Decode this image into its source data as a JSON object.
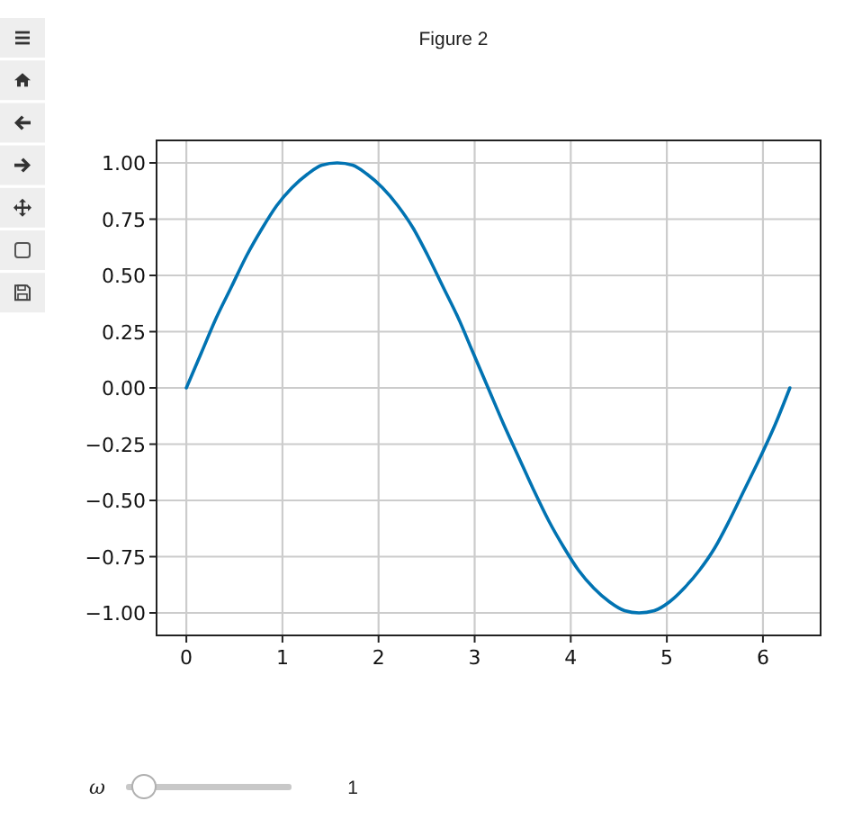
{
  "chart_data": {
    "type": "line",
    "title": "Figure 2",
    "x": [
      0,
      0.16,
      0.31,
      0.47,
      0.63,
      0.79,
      0.94,
      1.1,
      1.26,
      1.41,
      1.57,
      1.73,
      1.88,
      2.04,
      2.2,
      2.36,
      2.51,
      2.67,
      2.83,
      2.98,
      3.14,
      3.3,
      3.46,
      3.61,
      3.77,
      3.93,
      4.08,
      4.24,
      4.4,
      4.56,
      4.71,
      4.87,
      5.03,
      5.18,
      5.34,
      5.5,
      5.65,
      5.81,
      5.97,
      6.13,
      6.28
    ],
    "series": [
      {
        "color": "#0173b2",
        "values": [
          0,
          0.16,
          0.31,
          0.45,
          0.59,
          0.71,
          0.81,
          0.89,
          0.95,
          0.99,
          1.0,
          0.99,
          0.95,
          0.89,
          0.81,
          0.71,
          0.59,
          0.45,
          0.31,
          0.16,
          0,
          -0.16,
          -0.31,
          -0.45,
          -0.59,
          -0.71,
          -0.81,
          -0.89,
          -0.95,
          -0.99,
          -1.0,
          -0.99,
          -0.95,
          -0.89,
          -0.81,
          -0.71,
          -0.59,
          -0.45,
          -0.31,
          -0.16,
          0
        ]
      }
    ],
    "xlim": [
      -0.31,
      6.6
    ],
    "ylim": [
      -1.1,
      1.1
    ],
    "xticks": [
      0,
      1,
      2,
      3,
      4,
      5,
      6
    ],
    "yticks": [
      {
        "value": -1,
        "label": "−1.00"
      },
      {
        "value": -0.75,
        "label": "−0.75"
      },
      {
        "value": -0.5,
        "label": "−0.50"
      },
      {
        "value": -0.25,
        "label": "−0.25"
      },
      {
        "value": 0,
        "label": "0.00"
      },
      {
        "value": 0.25,
        "label": "0.25"
      },
      {
        "value": 0.5,
        "label": "0.50"
      },
      {
        "value": 0.75,
        "label": "0.75"
      },
      {
        "value": 1,
        "label": "1.00"
      }
    ],
    "grid": true,
    "marker": "none",
    "line_style": "solid",
    "annotations": [
      "ω",
      "1"
    ]
  }
}
